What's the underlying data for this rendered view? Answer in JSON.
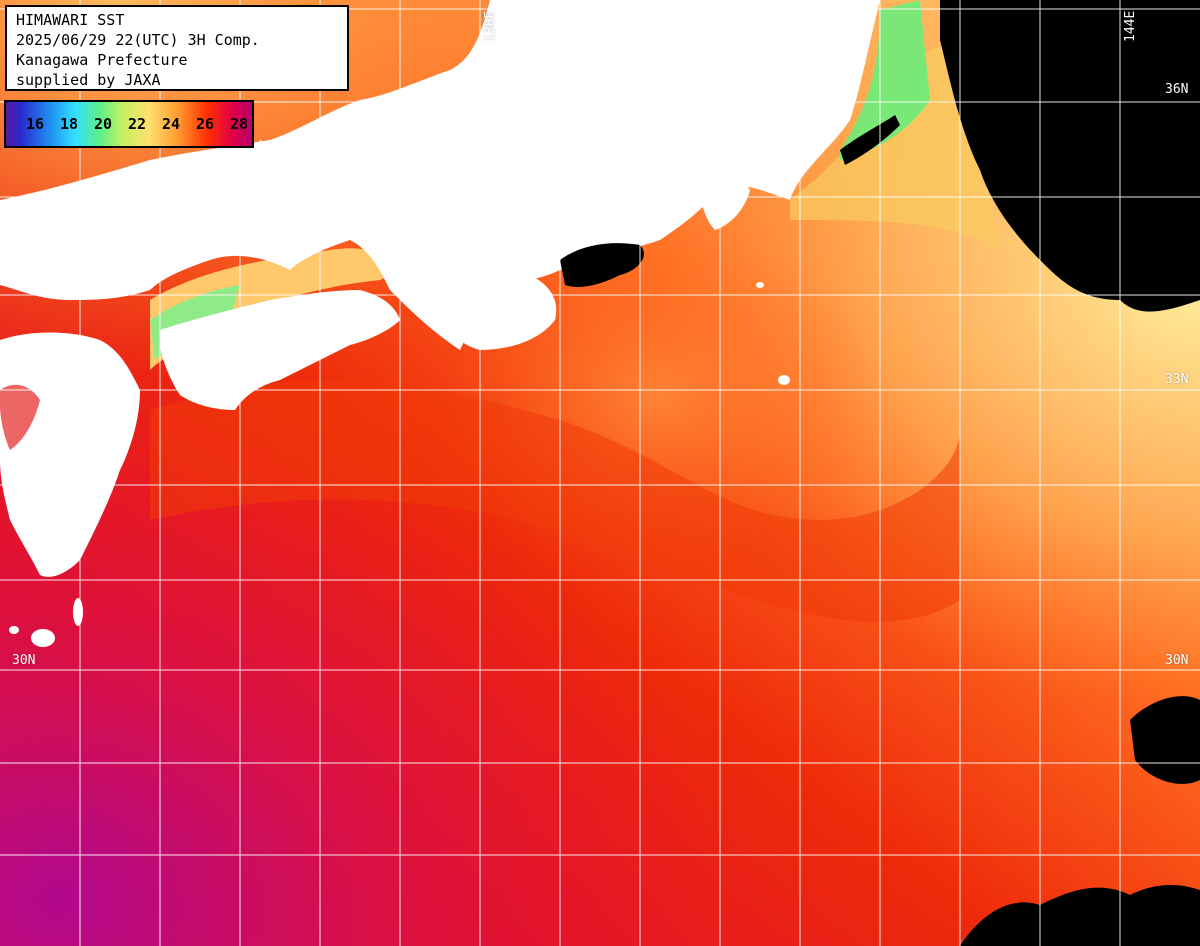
{
  "header": {
    "line1": "HIMAWARI SST",
    "line2": "2025/06/29 22(UTC) 3H Comp.",
    "line3": "Kanagawa Prefecture",
    "line4": "supplied by JAXA"
  },
  "legend": {
    "ticks": [
      "16",
      "18",
      "20",
      "22",
      "24",
      "26",
      "28"
    ]
  },
  "grid_labels": {
    "lon_136": "136E",
    "lon_144": "144E",
    "lat_36_right": "36N",
    "lat_33_right": "33N",
    "lat_30_left": "30N",
    "lat_30_right": "30N"
  },
  "colors": {
    "land": "#ffffff",
    "cloud": "#000000",
    "warm_south": "#e6103a",
    "kuroshio": "#f23a08",
    "north_sea": "#ff9a3a",
    "cool_coast": "#f6d46a",
    "cold_bay": "#6cec7a"
  }
}
